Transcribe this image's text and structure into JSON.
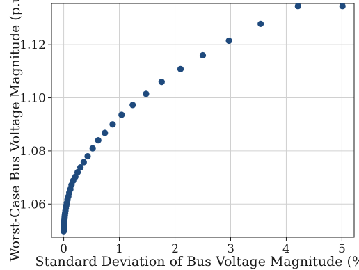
{
  "chart_data": {
    "type": "scatter",
    "title": "",
    "xlabel": "Standard Deviation of Bus Voltage Magnitude (%)",
    "ylabel": "Worst-Case Bus Voltage Magnitude (p.u.)",
    "xlim": [
      -0.22,
      5.22
    ],
    "ylim": [
      1.0475,
      1.1355
    ],
    "xticks": [
      0,
      1,
      2,
      3,
      4,
      5
    ],
    "yticks": [
      1.06,
      1.08,
      1.1,
      1.12
    ],
    "xtick_labels": [
      "0",
      "1",
      "2",
      "3",
      "4",
      "5"
    ],
    "ytick_labels": [
      "1.06",
      "1.08",
      "1.10",
      "1.12"
    ],
    "grid": true,
    "marker_color": "#1f4a7d",
    "series": [
      {
        "points": [
          [
            0.0,
            1.0498
          ],
          [
            0.001,
            1.0504
          ],
          [
            0.002,
            1.0509
          ],
          [
            0.003,
            1.0514
          ],
          [
            0.004,
            1.0519
          ],
          [
            0.006,
            1.0525
          ],
          [
            0.008,
            1.0531
          ],
          [
            0.01,
            1.0537
          ],
          [
            0.013,
            1.0544
          ],
          [
            0.016,
            1.0551
          ],
          [
            0.02,
            1.0558
          ],
          [
            0.025,
            1.0566
          ],
          [
            0.031,
            1.0575
          ],
          [
            0.038,
            1.0584
          ],
          [
            0.046,
            1.0594
          ],
          [
            0.056,
            1.0604
          ],
          [
            0.068,
            1.0616
          ],
          [
            0.082,
            1.0628
          ],
          [
            0.099,
            1.0642
          ],
          [
            0.12,
            1.0656
          ],
          [
            0.14,
            1.0672
          ],
          [
            0.17,
            1.0688
          ],
          [
            0.21,
            1.0703
          ],
          [
            0.25,
            1.072
          ],
          [
            0.3,
            1.0738
          ],
          [
            0.36,
            1.0758
          ],
          [
            0.43,
            1.078
          ],
          [
            0.52,
            1.081
          ],
          [
            0.62,
            1.084
          ],
          [
            0.74,
            1.0868
          ],
          [
            0.88,
            1.09
          ],
          [
            1.04,
            1.0936
          ],
          [
            1.24,
            1.0973
          ],
          [
            1.48,
            1.1015
          ],
          [
            1.76,
            1.106
          ],
          [
            2.1,
            1.1108
          ],
          [
            2.5,
            1.116
          ],
          [
            2.97,
            1.1215
          ],
          [
            3.54,
            1.1278
          ],
          [
            4.21,
            1.1345
          ],
          [
            5.01,
            1.1345
          ]
        ]
      }
    ]
  }
}
